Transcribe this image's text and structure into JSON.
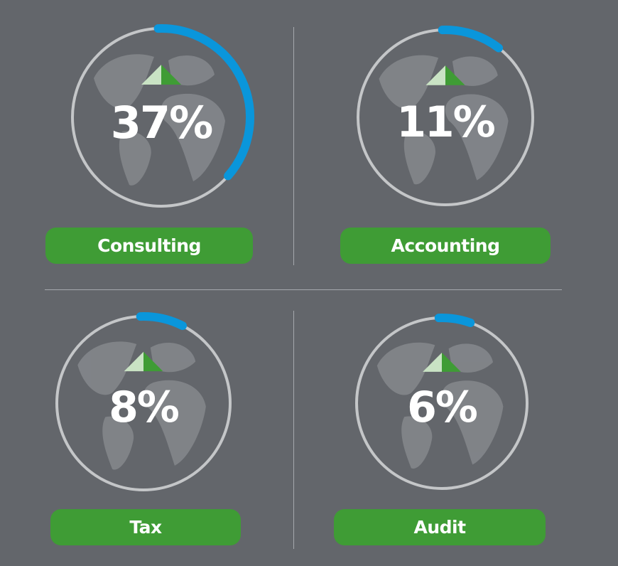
{
  "colors": {
    "background": "#63666b",
    "ring": "#c4c6c8",
    "progress": "#0a96db",
    "pill": "#3f9c35",
    "arrow_dark": "#3f9c35",
    "arrow_light": "#c9e3c4",
    "globe": "#8a8d91",
    "text": "#ffffff"
  },
  "chart_data": [
    {
      "type": "gauge",
      "label": "Consulting",
      "value": 37,
      "value_label": "37%",
      "range": [
        0,
        100
      ],
      "trend": "up"
    },
    {
      "type": "gauge",
      "label": "Accounting",
      "value": 11,
      "value_label": "11%",
      "range": [
        0,
        100
      ],
      "trend": "up"
    },
    {
      "type": "gauge",
      "label": "Tax",
      "value": 8,
      "value_label": "8%",
      "range": [
        0,
        100
      ],
      "trend": "up"
    },
    {
      "type": "gauge",
      "label": "Audit",
      "value": 6,
      "value_label": "6%",
      "range": [
        0,
        100
      ],
      "trend": "up"
    }
  ]
}
